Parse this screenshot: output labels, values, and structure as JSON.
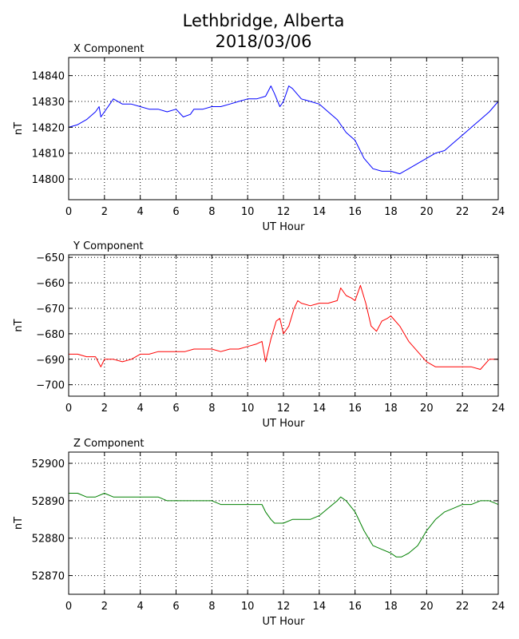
{
  "title": {
    "line1": "Lethbridge, Alberta",
    "line2": "2018/03/06"
  },
  "chart_data": [
    {
      "type": "line",
      "title": "X Component",
      "xlabel": "UT Hour",
      "ylabel": "nT",
      "xlim": [
        0,
        24
      ],
      "ylim": [
        14792,
        14847
      ],
      "xticks": [
        0,
        2,
        4,
        6,
        8,
        10,
        12,
        14,
        16,
        18,
        20,
        22,
        24
      ],
      "yticks": [
        14800,
        14810,
        14820,
        14830,
        14840
      ],
      "grid": true,
      "color": "#0000ff",
      "x": [
        0,
        0.5,
        1,
        1.5,
        1.7,
        1.8,
        2,
        2.3,
        2.5,
        3,
        3.5,
        4,
        4.5,
        5,
        5.5,
        6,
        6.4,
        6.8,
        7,
        7.5,
        8,
        8.5,
        9,
        9.5,
        10,
        10.5,
        11,
        11.3,
        11.5,
        11.8,
        12,
        12.3,
        12.5,
        13,
        13.5,
        14,
        14.5,
        15,
        15.5,
        16,
        16.5,
        17,
        17.5,
        18,
        18.5,
        19,
        19.5,
        20,
        20.5,
        21,
        21.5,
        22,
        22.5,
        23,
        23.5,
        24
      ],
      "y": [
        14820,
        14821,
        14823,
        14826,
        14828,
        14824,
        14826,
        14829,
        14831,
        14829,
        14829,
        14828,
        14827,
        14827,
        14826,
        14827,
        14824,
        14825,
        14827,
        14827,
        14828,
        14828,
        14829,
        14830,
        14831,
        14831,
        14832,
        14836,
        14833,
        14828,
        14830,
        14836,
        14835,
        14831,
        14830,
        14829,
        14826,
        14823,
        14818,
        14815,
        14808,
        14804,
        14803,
        14803,
        14802,
        14804,
        14806,
        14808,
        14810,
        14811,
        14814,
        14817,
        14820,
        14823,
        14826,
        14830
      ]
    },
    {
      "type": "line",
      "title": "Y Component",
      "xlabel": "UT Hour",
      "ylabel": "nT",
      "xlim": [
        0,
        24
      ],
      "ylim": [
        -704.5,
        -649
      ],
      "xticks": [
        0,
        2,
        4,
        6,
        8,
        10,
        12,
        14,
        16,
        18,
        20,
        22,
        24
      ],
      "yticks": [
        -650,
        -660,
        -670,
        -680,
        -690,
        -700
      ],
      "grid": true,
      "color": "#ff0000",
      "x": [
        0,
        0.5,
        1,
        1.5,
        1.8,
        2,
        2.5,
        3,
        3.5,
        4,
        4.5,
        5,
        5.5,
        6,
        6.5,
        7,
        7.5,
        8,
        8.5,
        9,
        9.5,
        10,
        10.5,
        10.8,
        11,
        11.3,
        11.6,
        11.8,
        12,
        12.3,
        12.6,
        12.8,
        13,
        13.5,
        14,
        14.5,
        15,
        15.2,
        15.5,
        15.8,
        16,
        16.3,
        16.6,
        16.9,
        17.2,
        17.5,
        17.8,
        18,
        18.5,
        19,
        19.5,
        20,
        20.5,
        21,
        21.5,
        22,
        22.5,
        23,
        23.5,
        24
      ],
      "y": [
        -688,
        -688,
        -689,
        -689,
        -693,
        -690,
        -690,
        -691,
        -690,
        -688,
        -688,
        -687,
        -687,
        -687,
        -687,
        -686,
        -686,
        -686,
        -687,
        -686,
        -686,
        -685,
        -684,
        -683,
        -691,
        -682,
        -675,
        -674,
        -680,
        -677,
        -670,
        -667,
        -668,
        -669,
        -668,
        -668,
        -667,
        -662,
        -665,
        -666,
        -667,
        -661,
        -668,
        -677,
        -679,
        -675,
        -674,
        -673,
        -677,
        -683,
        -687,
        -691,
        -693,
        -693,
        -693,
        -693,
        -693,
        -694,
        -690,
        -690
      ]
    },
    {
      "type": "line",
      "title": "Z Component",
      "xlabel": "UT Hour",
      "ylabel": "nT",
      "xlim": [
        0,
        24
      ],
      "ylim": [
        52865,
        52903
      ],
      "xticks": [
        0,
        2,
        4,
        6,
        8,
        10,
        12,
        14,
        16,
        18,
        20,
        22,
        24
      ],
      "yticks": [
        52870,
        52880,
        52890,
        52900
      ],
      "grid": true,
      "color": "#008000",
      "x": [
        0,
        0.5,
        1,
        1.5,
        2,
        2.5,
        3,
        3.5,
        4,
        4.5,
        5,
        5.5,
        6,
        6.5,
        7,
        7.5,
        8,
        8.5,
        9,
        9.5,
        10,
        10.5,
        10.8,
        11,
        11.3,
        11.5,
        11.8,
        12,
        12.5,
        13,
        13.5,
        14,
        14.5,
        15,
        15.2,
        15.5,
        16,
        16.5,
        17,
        17.5,
        18,
        18.3,
        18.6,
        19,
        19.5,
        20,
        20.5,
        21,
        21.5,
        22,
        22.5,
        23,
        23.5,
        24
      ],
      "y": [
        52892,
        52892,
        52891,
        52891,
        52892,
        52891,
        52891,
        52891,
        52891,
        52891,
        52891,
        52890,
        52890,
        52890,
        52890,
        52890,
        52890,
        52889,
        52889,
        52889,
        52889,
        52889,
        52889,
        52887,
        52885,
        52884,
        52884,
        52884,
        52885,
        52885,
        52885,
        52886,
        52888,
        52890,
        52891,
        52890,
        52887,
        52882,
        52878,
        52877,
        52876,
        52875,
        52875,
        52876,
        52878,
        52882,
        52885,
        52887,
        52888,
        52889,
        52889,
        52890,
        52890,
        52889
      ]
    }
  ]
}
